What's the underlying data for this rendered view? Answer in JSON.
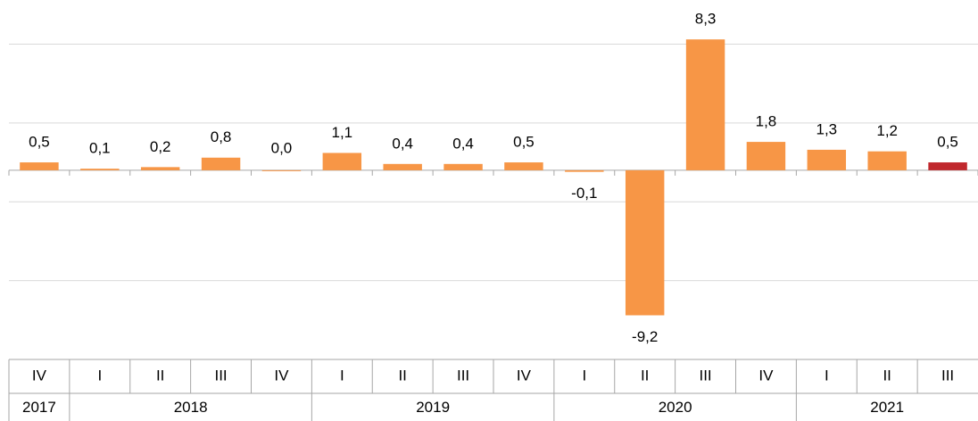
{
  "chart_data": {
    "type": "bar",
    "categories": [
      "IV",
      "I",
      "II",
      "III",
      "IV",
      "I",
      "II",
      "III",
      "IV",
      "I",
      "II",
      "III",
      "IV",
      "I",
      "II",
      "III"
    ],
    "groups": [
      {
        "label": "2017",
        "count": 1
      },
      {
        "label": "2018",
        "count": 4
      },
      {
        "label": "2019",
        "count": 4
      },
      {
        "label": "2020",
        "count": 4
      },
      {
        "label": "2021",
        "count": 3
      }
    ],
    "values": [
      0.5,
      0.1,
      0.2,
      0.8,
      0.0,
      1.1,
      0.4,
      0.4,
      0.5,
      -0.1,
      -9.2,
      8.3,
      1.8,
      1.3,
      1.2,
      0.5
    ],
    "value_labels": [
      "0,5",
      "0,1",
      "0,2",
      "0,8",
      "0,0",
      "1,1",
      "0,4",
      "0,4",
      "0,5",
      "-0,1",
      "-9,2",
      "8,3",
      "1,8",
      "1,3",
      "1,2",
      "0,5"
    ],
    "colors": [
      "#f79646",
      "#f79646",
      "#f79646",
      "#f79646",
      "#f79646",
      "#f79646",
      "#f79646",
      "#f79646",
      "#f79646",
      "#f79646",
      "#f79646",
      "#f79646",
      "#f79646",
      "#f79646",
      "#f79646",
      "#c0282d"
    ],
    "ylim": [
      -12,
      10.8
    ],
    "yticks": [
      -12,
      -7,
      -2,
      3,
      8
    ],
    "grid": true
  }
}
